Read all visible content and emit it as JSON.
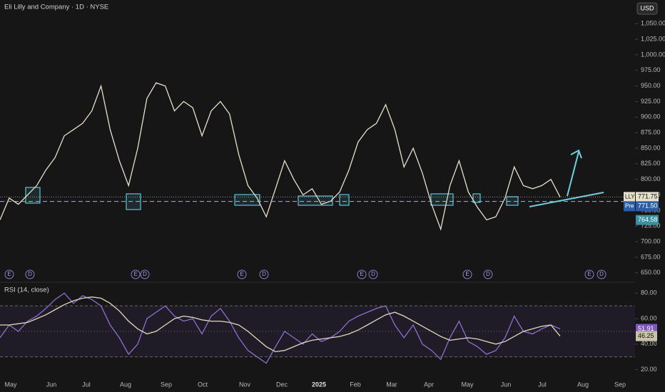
{
  "chart_data": [
    {
      "type": "line",
      "title": "Eli Lilly and Company · 1D · NYSE",
      "currency": "USD",
      "ylim": [
        636,
        1088
      ],
      "yticks": [
        {
          "value": 650,
          "label": "650.00"
        },
        {
          "value": 675,
          "label": "675.00"
        },
        {
          "value": 700,
          "label": "700.00"
        },
        {
          "value": 725,
          "label": "725.00"
        },
        {
          "value": 750,
          "label": "750.00"
        },
        {
          "value": 775,
          "label": "775.00"
        },
        {
          "value": 800,
          "label": "800.00"
        },
        {
          "value": 825,
          "label": "825.00"
        },
        {
          "value": 850,
          "label": "850.00"
        },
        {
          "value": 875,
          "label": "875.00"
        },
        {
          "value": 900,
          "label": "900.00"
        },
        {
          "value": 925,
          "label": "925.00"
        },
        {
          "value": 950,
          "label": "950.00"
        },
        {
          "value": 975,
          "label": "975.00"
        },
        {
          "value": 1000,
          "label": "1,000.00"
        },
        {
          "value": 1025,
          "label": "1,025.00"
        },
        {
          "value": 1050,
          "label": "1,050.00"
        }
      ],
      "series": [
        {
          "name": "LLY",
          "color": "#e6dfca",
          "values": [
            735,
            770,
            760,
            775,
            790,
            815,
            835,
            870,
            880,
            890,
            910,
            950,
            880,
            830,
            790,
            850,
            930,
            955,
            950,
            910,
            925,
            915,
            870,
            910,
            925,
            905,
            840,
            790,
            770,
            740,
            785,
            830,
            800,
            775,
            785,
            760,
            765,
            780,
            815,
            860,
            880,
            890,
            920,
            880,
            820,
            850,
            810,
            760,
            720,
            790,
            830,
            780,
            755,
            735,
            740,
            770,
            820,
            790,
            785,
            790,
            800,
            771.75
          ]
        }
      ],
      "last_price": 771.75,
      "premarket": {
        "tag": "Pre",
        "value": {
          "value": 771.5,
          "label": "771.50"
        }
      },
      "reference_line": 764.58
    },
    {
      "type": "line",
      "title": "RSI (14, close)",
      "ylim": [
        8,
        88
      ],
      "yticks": [
        {
          "value": 20,
          "label": "20.00"
        },
        {
          "value": 40,
          "label": "40.00"
        },
        {
          "value": 60,
          "label": "60.00"
        },
        {
          "value": 80,
          "label": "80.00"
        }
      ],
      "levels": [
        30,
        50,
        70
      ],
      "series": [
        {
          "color": "#8d6fd1",
          "values": [
            45,
            55,
            50,
            58,
            62,
            68,
            75,
            80,
            72,
            78,
            75,
            70,
            55,
            45,
            32,
            40,
            60,
            65,
            70,
            62,
            58,
            60,
            48,
            62,
            68,
            58,
            45,
            35,
            30,
            25,
            38,
            50,
            45,
            40,
            48,
            42,
            45,
            50,
            58,
            62,
            65,
            68,
            70,
            55,
            45,
            55,
            40,
            35,
            28,
            45,
            58,
            42,
            38,
            32,
            35,
            45,
            62,
            50,
            48,
            52,
            55,
            51.91
          ]
        },
        {
          "color": "#e0d8bc",
          "values": [
            55,
            55,
            56,
            57,
            60,
            63,
            67,
            71,
            74,
            76,
            77,
            76,
            72,
            66,
            58,
            52,
            48,
            50,
            55,
            60,
            62,
            61,
            59,
            58,
            58,
            57,
            55,
            50,
            44,
            38,
            34,
            35,
            38,
            41,
            43,
            44,
            45,
            46,
            48,
            51,
            55,
            59,
            63,
            65,
            62,
            58,
            54,
            50,
            46,
            43,
            44,
            45,
            44,
            42,
            40,
            42,
            46,
            50,
            52,
            54,
            55,
            46.25
          ]
        }
      ]
    }
  ],
  "x_axis": {
    "labels": [
      "May",
      "Jun",
      "Jul",
      "Aug",
      "Sep",
      "Oct",
      "Nov",
      "Dec",
      "2025",
      "Feb",
      "Mar",
      "Apr",
      "May",
      "Jun",
      "Jul",
      "Aug",
      "Sep"
    ]
  },
  "event_markers": [
    "E",
    "D",
    "E",
    "D",
    "E",
    "D",
    "E",
    "D",
    "E",
    "D",
    "E",
    "D"
  ]
}
